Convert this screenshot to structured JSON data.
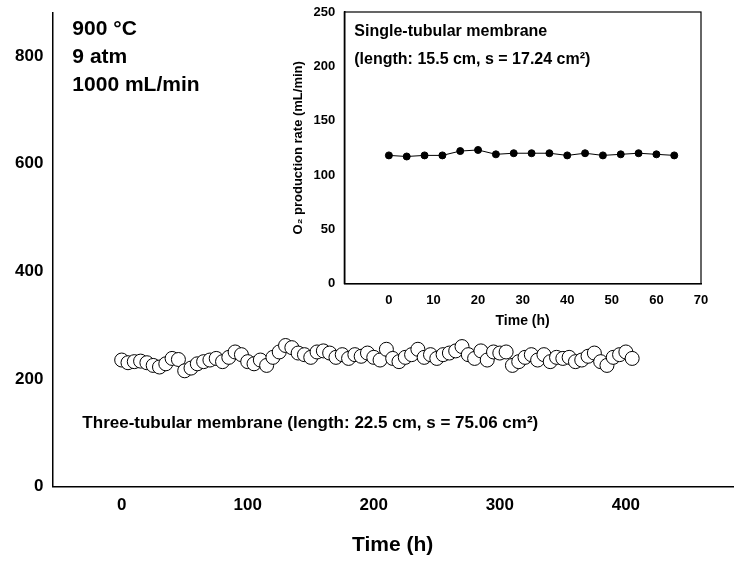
{
  "chart_data": [
    {
      "type": "scatter",
      "x_label": "Time (h)",
      "annotations": [
        "900 °C",
        "9 atm",
        "1000 mL/min"
      ],
      "xlim": [
        -55,
        485
      ],
      "xticks": [
        0,
        100,
        200,
        300,
        400
      ],
      "ylim": [
        0,
        880
      ],
      "yticks": [
        0,
        200,
        400,
        600,
        800
      ],
      "grid": false,
      "series": [
        {
          "name": "Three-tubular membrane (length: 22.5 cm, s = 75.06 cm²)",
          "color": "#000000",
          "marker": "open_circle",
          "x": [
            0,
            5,
            10,
            15,
            20,
            25,
            30,
            35,
            40,
            45,
            50,
            55,
            60,
            65,
            70,
            75,
            80,
            85,
            90,
            95,
            100,
            105,
            110,
            115,
            120,
            125,
            130,
            135,
            140,
            145,
            150,
            155,
            160,
            165,
            170,
            175,
            180,
            185,
            190,
            195,
            200,
            205,
            210,
            215,
            220,
            225,
            230,
            235,
            240,
            245,
            250,
            255,
            260,
            265,
            270,
            275,
            280,
            285,
            290,
            295,
            300,
            305,
            310,
            315,
            320,
            325,
            330,
            335,
            340,
            345,
            350,
            355,
            360,
            365,
            370,
            375,
            380,
            385,
            390,
            395,
            400,
            405
          ],
          "values": [
            235,
            230,
            232,
            233,
            230,
            225,
            222,
            228,
            238,
            236,
            215,
            220,
            228,
            232,
            235,
            238,
            232,
            240,
            250,
            245,
            232,
            228,
            235,
            225,
            240,
            250,
            262,
            258,
            248,
            245,
            240,
            250,
            252,
            248,
            240,
            245,
            238,
            245,
            242,
            248,
            240,
            235,
            255,
            238,
            232,
            240,
            245,
            255,
            240,
            245,
            238,
            245,
            248,
            252,
            260,
            245,
            238,
            252,
            235,
            250,
            248,
            250,
            225,
            232,
            240,
            245,
            235,
            245,
            232,
            240,
            238,
            240,
            232,
            235,
            242,
            248,
            232,
            225,
            240,
            245,
            250,
            238
          ]
        }
      ]
    },
    {
      "type": "line",
      "title": "Single-tubular membrane",
      "subtitle": "(length: 15.5 cm, s = 17.24 cm²)",
      "x_label": "Time (h)",
      "y_label": "O₂ production rate (mL/min)",
      "xlim": [
        -10,
        70
      ],
      "xticks": [
        0,
        10,
        20,
        30,
        40,
        50,
        60,
        70
      ],
      "ylim": [
        0,
        250
      ],
      "yticks": [
        0,
        50,
        100,
        150,
        200,
        250
      ],
      "grid": false,
      "series": [
        {
          "color": "#000000",
          "marker": "circle",
          "x": [
            0,
            4,
            8,
            12,
            16,
            20,
            24,
            28,
            32,
            36,
            40,
            44,
            48,
            52,
            56,
            60,
            64
          ],
          "values": [
            118,
            117,
            118,
            118,
            122,
            123,
            119,
            120,
            120,
            120,
            118,
            120,
            118,
            119,
            120,
            119,
            118
          ]
        }
      ]
    }
  ]
}
